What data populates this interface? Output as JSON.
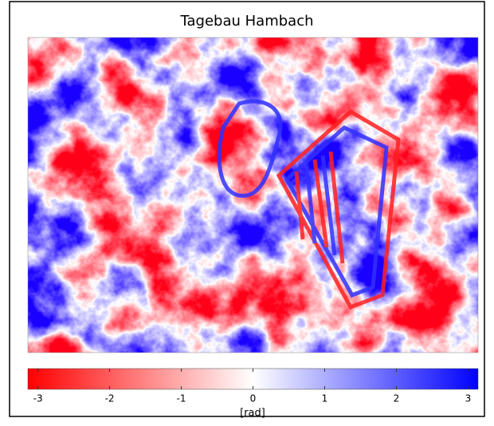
{
  "chart_data": {
    "type": "heatmap",
    "title": "Tagebau Hambach",
    "colorbar": {
      "label": "[rad]",
      "lim": [
        -3.14,
        3.14
      ],
      "ticks": [
        -3,
        -2,
        -1,
        0,
        1,
        2,
        3
      ],
      "colormap": [
        "#ff0000",
        "#ffffff",
        "#0000ff"
      ]
    }
  }
}
